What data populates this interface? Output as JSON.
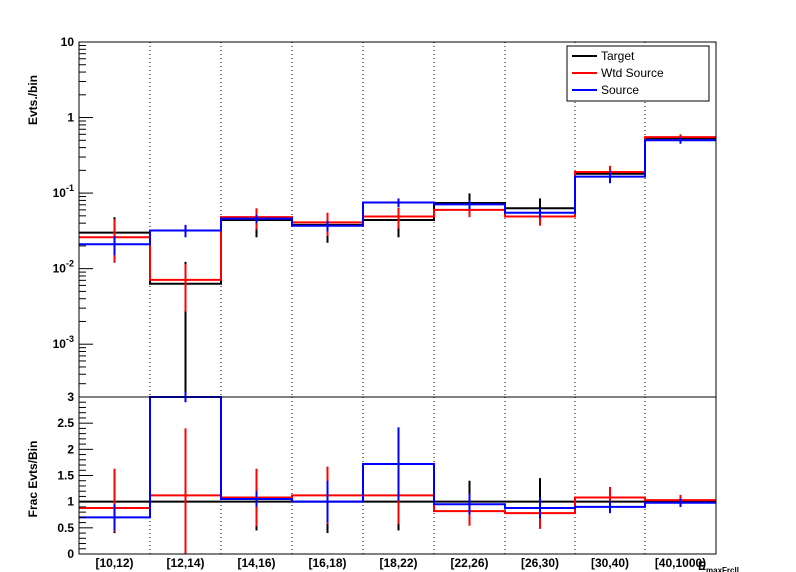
{
  "chart_data": [
    {
      "type": "histogram",
      "panel": "main",
      "ylabel": "Evts./bin",
      "yscale": "log",
      "ylim": [
        0.0002,
        10
      ],
      "y_tick_labels": [
        {
          "value": 10,
          "label": "10"
        },
        {
          "value": 1,
          "label": "1"
        },
        {
          "value": 0.1,
          "base": "10",
          "exp": "-1"
        },
        {
          "value": 0.01,
          "base": "10",
          "exp": "-2"
        },
        {
          "value": 0.001,
          "base": "10",
          "exp": "-3"
        }
      ],
      "categories": [
        "[10,12)",
        "[12,14)",
        "[14,16)",
        "[16,18)",
        "[18,22)",
        "[22,26)",
        "[26,30)",
        "[30,40)",
        "[40,1000)"
      ],
      "series": [
        {
          "name": "Target",
          "color": "#000000",
          "values": [
            0.03,
            0.0063,
            0.044,
            0.038,
            0.044,
            0.074,
            0.063,
            0.18,
            0.53
          ],
          "err_low": [
            0.018,
            0.0061,
            0.018,
            0.016,
            0.018,
            0.025,
            0.022,
            0.04,
            0.05
          ],
          "err_high": [
            0.018,
            0.006,
            0.018,
            0.016,
            0.018,
            0.025,
            0.022,
            0.04,
            0.05
          ]
        },
        {
          "name": "Wtd Source",
          "color": "#ff0000",
          "values": [
            0.026,
            0.0071,
            0.048,
            0.041,
            0.049,
            0.06,
            0.049,
            0.19,
            0.55
          ],
          "err_low": [
            0.014,
            0.0044,
            0.015,
            0.014,
            0.015,
            0.012,
            0.012,
            0.04,
            0.05
          ],
          "err_high": [
            0.019,
            0.0044,
            0.015,
            0.014,
            0.015,
            0.012,
            0.012,
            0.04,
            0.05
          ]
        },
        {
          "name": "Source",
          "color": "#0000ff",
          "values": [
            0.021,
            0.032,
            0.046,
            0.037,
            0.075,
            0.071,
            0.055,
            0.165,
            0.5
          ],
          "err_low": [
            0.006,
            0.006,
            0.006,
            0.006,
            0.01,
            0.01,
            0.008,
            0.03,
            0.05
          ],
          "err_high": [
            0.006,
            0.006,
            0.006,
            0.006,
            0.01,
            0.01,
            0.008,
            0.03,
            0.05
          ]
        }
      ],
      "legend": {
        "position": "top-right",
        "entries": [
          "Target",
          "Wtd Source",
          "Source"
        ]
      },
      "grid": "vertical dotted lines at bin edges"
    },
    {
      "type": "histogram",
      "panel": "ratio",
      "ylabel": "Frac Evts/Bin",
      "ylim": [
        0,
        3
      ],
      "y_tick_labels": [
        "0",
        "0.5",
        "1",
        "1.5",
        "2",
        "2.5",
        "3"
      ],
      "xlabel": "E_maxFrcll",
      "categories": [
        "[10,12)",
        "[12,14)",
        "[14,16)",
        "[16,18)",
        "[18,22)",
        "[22,26)",
        "[26,30)",
        "[30,40)",
        "[40,1000)"
      ],
      "series": [
        {
          "name": "Target",
          "color": "#000000",
          "values": [
            1,
            1,
            1,
            1,
            1,
            1,
            1,
            1,
            1
          ],
          "err_low": [
            0.6,
            1.0,
            0.55,
            0.6,
            0.55,
            0.4,
            0.45,
            0.2,
            0.1
          ],
          "err_high": [
            0.6,
            1.0,
            0.55,
            0.6,
            0.55,
            0.4,
            0.45,
            0.2,
            0.1
          ]
        },
        {
          "name": "Wtd Source",
          "color": "#ff0000",
          "values": [
            0.88,
            1.12,
            1.08,
            1.12,
            1.12,
            0.82,
            0.78,
            1.08,
            1.03
          ],
          "err_low": [
            0.45,
            1.12,
            0.55,
            0.55,
            0.55,
            0.28,
            0.3,
            0.2,
            0.1
          ],
          "err_high": [
            0.75,
            1.28,
            0.55,
            0.55,
            0.55,
            0.28,
            0.3,
            0.2,
            0.1
          ]
        },
        {
          "name": "Source",
          "color": "#0000ff",
          "values": [
            0.7,
            3.0,
            1.05,
            1.0,
            1.72,
            0.95,
            0.88,
            0.9,
            0.98
          ],
          "err_low": [
            0.25,
            0.1,
            0.15,
            0.4,
            0.7,
            0.2,
            0.2,
            0.12,
            0.08
          ],
          "err_high": [
            0.25,
            0.1,
            0.15,
            0.4,
            0.7,
            0.2,
            0.2,
            0.12,
            0.08
          ]
        }
      ]
    }
  ]
}
